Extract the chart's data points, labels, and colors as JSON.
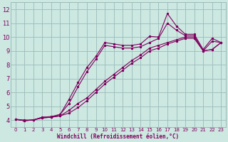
{
  "background_color": "#cce8e0",
  "line_color": "#800060",
  "grid_color": "#99bbbb",
  "xlabel": "Windchill (Refroidissement éolien,°C)",
  "xlabel_color": "#800060",
  "ylim": [
    3.5,
    12.5
  ],
  "xlim": [
    -0.5,
    23.5
  ],
  "yticks": [
    4,
    5,
    6,
    7,
    8,
    9,
    10,
    11,
    12
  ],
  "xticks": [
    0,
    1,
    2,
    3,
    4,
    5,
    6,
    7,
    8,
    9,
    10,
    11,
    12,
    13,
    14,
    15,
    16,
    17,
    18,
    19,
    20,
    21,
    22,
    23
  ],
  "series1": [
    [
      0,
      4.05
    ],
    [
      1,
      4.0
    ],
    [
      2,
      4.0
    ],
    [
      3,
      4.2
    ],
    [
      4,
      4.2
    ],
    [
      5,
      4.4
    ],
    [
      6,
      5.5
    ],
    [
      7,
      6.7
    ],
    [
      8,
      7.8
    ],
    [
      9,
      8.6
    ],
    [
      10,
      9.6
    ],
    [
      11,
      9.5
    ],
    [
      12,
      9.4
    ],
    [
      13,
      9.4
    ],
    [
      14,
      9.5
    ],
    [
      15,
      10.05
    ],
    [
      16,
      10.0
    ],
    [
      17,
      11.7
    ],
    [
      18,
      10.8
    ],
    [
      19,
      10.2
    ],
    [
      20,
      10.2
    ],
    [
      21,
      9.1
    ],
    [
      22,
      9.9
    ],
    [
      23,
      9.6
    ]
  ],
  "series2": [
    [
      0,
      4.05
    ],
    [
      1,
      3.95
    ],
    [
      2,
      4.0
    ],
    [
      3,
      4.2
    ],
    [
      4,
      4.25
    ],
    [
      5,
      4.4
    ],
    [
      6,
      5.2
    ],
    [
      7,
      6.4
    ],
    [
      8,
      7.5
    ],
    [
      9,
      8.4
    ],
    [
      10,
      9.4
    ],
    [
      11,
      9.3
    ],
    [
      12,
      9.2
    ],
    [
      13,
      9.2
    ],
    [
      14,
      9.3
    ],
    [
      15,
      9.6
    ],
    [
      16,
      9.9
    ],
    [
      17,
      11.0
    ],
    [
      18,
      10.5
    ],
    [
      19,
      10.1
    ],
    [
      20,
      10.1
    ],
    [
      21,
      9.0
    ],
    [
      22,
      9.7
    ],
    [
      23,
      9.6
    ]
  ],
  "series3": [
    [
      0,
      4.05
    ],
    [
      1,
      3.95
    ],
    [
      2,
      4.0
    ],
    [
      3,
      4.15
    ],
    [
      4,
      4.2
    ],
    [
      5,
      4.3
    ],
    [
      6,
      4.5
    ],
    [
      7,
      4.9
    ],
    [
      8,
      5.4
    ],
    [
      9,
      6.0
    ],
    [
      10,
      6.6
    ],
    [
      11,
      7.1
    ],
    [
      12,
      7.6
    ],
    [
      13,
      8.1
    ],
    [
      14,
      8.5
    ],
    [
      15,
      9.0
    ],
    [
      16,
      9.2
    ],
    [
      17,
      9.5
    ],
    [
      18,
      9.7
    ],
    [
      19,
      9.9
    ],
    [
      20,
      9.9
    ],
    [
      21,
      9.0
    ],
    [
      22,
      9.1
    ],
    [
      23,
      9.6
    ]
  ],
  "series4": [
    [
      0,
      4.05
    ],
    [
      1,
      3.95
    ],
    [
      2,
      4.0
    ],
    [
      3,
      4.15
    ],
    [
      4,
      4.2
    ],
    [
      5,
      4.3
    ],
    [
      6,
      4.7
    ],
    [
      7,
      5.2
    ],
    [
      8,
      5.6
    ],
    [
      9,
      6.2
    ],
    [
      10,
      6.8
    ],
    [
      11,
      7.3
    ],
    [
      12,
      7.8
    ],
    [
      13,
      8.3
    ],
    [
      14,
      8.7
    ],
    [
      15,
      9.2
    ],
    [
      16,
      9.4
    ],
    [
      17,
      9.6
    ],
    [
      18,
      9.8
    ],
    [
      19,
      10.0
    ],
    [
      20,
      10.0
    ],
    [
      21,
      9.0
    ],
    [
      22,
      9.1
    ],
    [
      23,
      9.6
    ]
  ]
}
